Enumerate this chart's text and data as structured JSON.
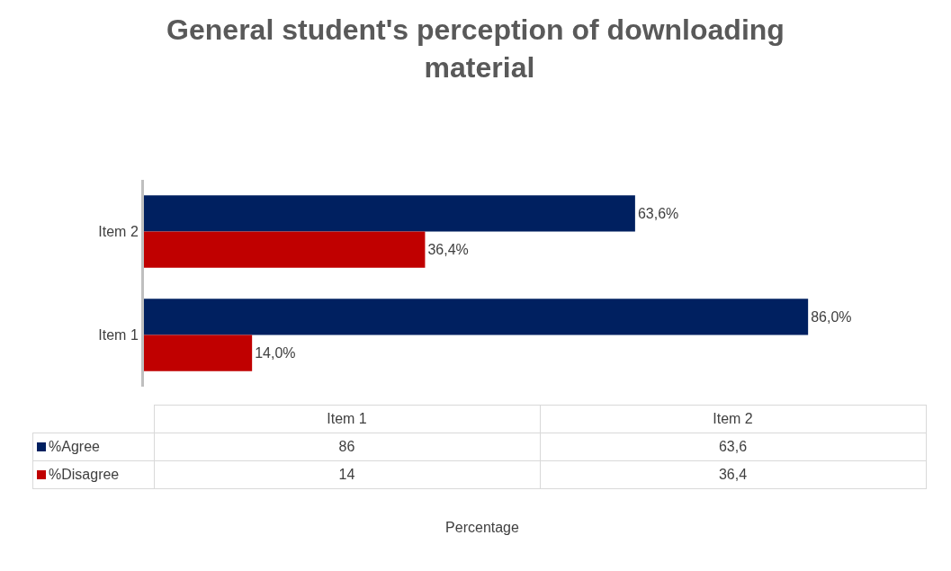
{
  "chart_data": [
    {
      "type": "bar",
      "orientation": "horizontal",
      "title": "General student's perception of downloading material",
      "categories": [
        "Item 2",
        "Item 1"
      ],
      "grid": false,
      "tick_labels": "y",
      "series": [
        {
          "color": "#002060",
          "values": [
            63.6,
            86
          ],
          "value_labels": [
            "63,6%",
            "86,0%"
          ]
        },
        {
          "color": "#c00000",
          "values": [
            36.4,
            14
          ],
          "value_labels": [
            "36,4%",
            "14,0%"
          ]
        }
      ]
    },
    {
      "type": "other",
      "categories": [
        "Item 1",
        "Item 2"
      ],
      "annotations": [
        "Percentage"
      ],
      "legend": "bottom",
      "series": [
        {
          "name": "%Agree",
          "color": "#002060",
          "values": [
            86,
            63.6
          ],
          "value_labels": [
            "86",
            "63,6"
          ]
        },
        {
          "name": "%Disagree",
          "color": "#c00000",
          "values": [
            14,
            36.4
          ],
          "value_labels": [
            "14",
            "36,4"
          ]
        }
      ]
    }
  ]
}
